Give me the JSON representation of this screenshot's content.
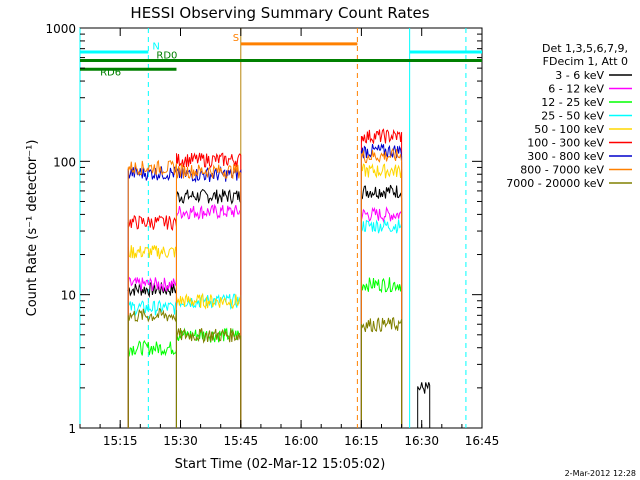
{
  "chart_data": {
    "type": "line",
    "title": "HESSI Observing Summary Count Rates",
    "xlabel": "Start Time (02-Mar-12 15:05:02)",
    "ylabel": "Count Rate (s⁻¹ detector⁻¹)",
    "y_scale": "log",
    "ylim": [
      1,
      1000
    ],
    "xlim": [
      "15:05",
      "16:45"
    ],
    "x_ticks": [
      "15:15",
      "15:30",
      "15:45",
      "16:00",
      "16:15",
      "16:30",
      "16:45"
    ],
    "y_ticks": [
      "1",
      "10",
      "100",
      "1000"
    ],
    "legend": {
      "header": [
        "Det 1,3,5,6,7,9,",
        "FDecim 1, Att 0"
      ],
      "placement": "right"
    },
    "footer_timestamp": "2-Mar-2012 12:28",
    "series": [
      {
        "name": "3 - 6 keV",
        "color": "#000000",
        "level": 11,
        "segments": [
          [
            "15:17",
            "15:29",
            11
          ],
          [
            "15:29",
            "15:45",
            55
          ],
          [
            "16:15",
            "16:25",
            60
          ],
          [
            "16:29",
            "16:32",
            2
          ]
        ]
      },
      {
        "name": "6 - 12 keV",
        "color": "#ff00ff",
        "level": 12,
        "segments": [
          [
            "15:17",
            "15:29",
            12
          ],
          [
            "15:29",
            "15:45",
            42
          ],
          [
            "16:15",
            "16:25",
            40
          ]
        ]
      },
      {
        "name": "12 - 25 keV",
        "color": "#00ff00",
        "level": 4,
        "segments": [
          [
            "15:17",
            "15:29",
            4
          ],
          [
            "15:29",
            "15:45",
            5
          ],
          [
            "16:15",
            "16:25",
            12
          ]
        ]
      },
      {
        "name": "25 - 50 keV",
        "color": "#00ffff",
        "level": 8,
        "segments": [
          [
            "15:17",
            "15:29",
            8
          ],
          [
            "15:29",
            "15:45",
            9
          ],
          [
            "16:15",
            "16:25",
            33
          ]
        ]
      },
      {
        "name": "50 - 100 keV",
        "color": "#ffd700",
        "level": 22,
        "segments": [
          [
            "15:17",
            "15:29",
            21
          ],
          [
            "15:29",
            "15:45",
            9
          ],
          [
            "16:15",
            "16:25",
            85
          ]
        ]
      },
      {
        "name": "100 - 300 keV",
        "color": "#ff0000",
        "level": 35,
        "segments": [
          [
            "15:17",
            "15:29",
            35
          ],
          [
            "15:29",
            "15:45",
            103
          ],
          [
            "16:15",
            "16:25",
            155
          ]
        ]
      },
      {
        "name": "300 - 800 keV",
        "color": "#0000cc",
        "level": 80,
        "segments": [
          [
            "15:17",
            "15:29",
            82
          ],
          [
            "15:29",
            "15:45",
            80
          ],
          [
            "16:15",
            "16:25",
            120
          ]
        ]
      },
      {
        "name": "800 - 7000 keV",
        "color": "#ff8000",
        "level": 88,
        "segments": [
          [
            "15:17",
            "15:29",
            90
          ],
          [
            "15:29",
            "15:45",
            85
          ],
          [
            "16:15",
            "16:25",
            110
          ]
        ]
      },
      {
        "name": "7000 - 20000 keV",
        "color": "#808000",
        "level": 5,
        "segments": [
          [
            "15:17",
            "15:29",
            7
          ],
          [
            "15:29",
            "15:45",
            5
          ],
          [
            "16:15",
            "16:25",
            6
          ]
        ]
      }
    ],
    "annotations": {
      "flags": [
        {
          "label": "N",
          "color": "#00ffff",
          "segments": [
            [
              "15:05",
              "15:22"
            ],
            [
              "16:27",
              "16:45"
            ]
          ]
        },
        {
          "label": "S",
          "color": "#ff8000",
          "segments": [
            [
              "15:45",
              "16:14"
            ]
          ]
        },
        {
          "label": "RD0",
          "color": "#008000",
          "segments": [
            [
              "15:05",
              "16:45"
            ]
          ]
        },
        {
          "label": "RD6",
          "color": "#008000",
          "segments": [
            [
              "15:05",
              "15:29"
            ]
          ]
        }
      ],
      "vlines": [
        {
          "time": "15:22",
          "color": "#00ffff",
          "style": "dashed"
        },
        {
          "time": "16:27",
          "color": "#00ffff",
          "style": "solid"
        },
        {
          "time": "16:41",
          "color": "#00ffff",
          "style": "dashed"
        },
        {
          "time": "15:45",
          "color": "#b8860b",
          "style": "solid"
        },
        {
          "time": "16:14",
          "color": "#ff8000",
          "style": "dashed"
        },
        {
          "time": "15:05",
          "color": "#00ffff",
          "style": "solid"
        }
      ]
    }
  }
}
